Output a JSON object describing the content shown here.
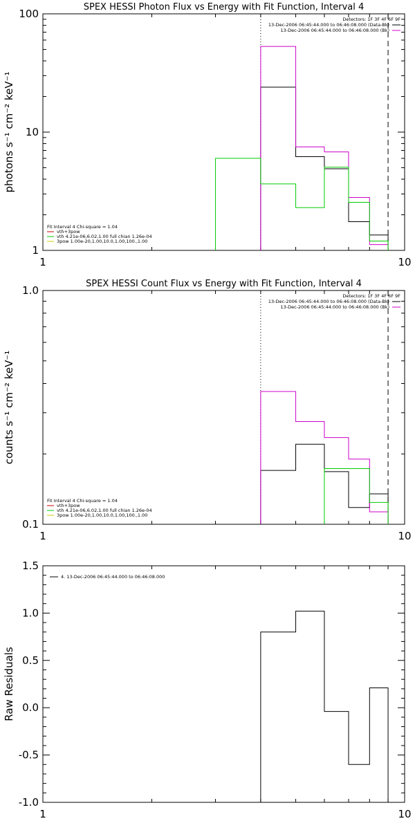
{
  "chart_data": [
    {
      "type": "line",
      "title": "SPEX HESSI Photon Flux vs Energy with Fit Function, Interval 4",
      "ylabel": "photons s⁻¹ cm⁻² keV⁻¹",
      "xscale": "log",
      "yscale": "log",
      "xlim": [
        1,
        10
      ],
      "ylim": [
        1,
        100
      ],
      "xticks": [
        "1",
        "10"
      ],
      "yticks": [
        {
          "v": 1,
          "t": "1"
        },
        {
          "v": 10,
          "t": "10"
        },
        {
          "v": 100,
          "t": "100"
        }
      ],
      "vlines": [
        {
          "x": 4.0,
          "style": "dotted"
        },
        {
          "x": 9.0,
          "style": "dashed"
        }
      ],
      "legend_top": {
        "header": "Detectors: 1F 3F 4F 6F 9F",
        "entries": [
          {
            "text": "13-Dec-2006 06:45:44.000 to 06:46:08.000 (Data-Bk)",
            "color": "#000000"
          },
          {
            "text": "13-Dec-2006 06:45:44.000 to 06:46:08.000 (Bk)",
            "color": "#cc00cc"
          }
        ]
      },
      "legend_bottom": [
        {
          "text": "Fit Interval  4    Chi-square = 1.04",
          "color": null
        },
        {
          "text": "vth+3pow",
          "color": "#cc0000"
        },
        {
          "text": "vth 4.21e-06,6.02,1.00   full chian 1.26e-04",
          "color": "#00cc00"
        },
        {
          "text": "3pow 1.00e-20,1.00,10.0,1.00,100.,1.00",
          "color": "#cccc00"
        }
      ],
      "series": [
        {
          "name": "Data-Bk",
          "color": "#000000",
          "edges": [
            4.0,
            5.0,
            6.0,
            7.0,
            8.0,
            9.0
          ],
          "values": [
            24.0,
            6.2,
            4.9,
            1.75,
            1.35
          ]
        },
        {
          "name": "Bk",
          "color": "#cc00cc",
          "edges": [
            4.0,
            5.0,
            6.0,
            7.0,
            8.0,
            9.0
          ],
          "values": [
            53.0,
            7.5,
            6.8,
            2.8,
            1.12
          ]
        },
        {
          "name": "vth",
          "color": "#00cc00",
          "edges": [
            3.0,
            4.0,
            5.0,
            6.0,
            7.0,
            8.0,
            9.0
          ],
          "values": [
            6.0,
            3.65,
            2.3,
            5.05,
            2.55,
            1.2
          ]
        }
      ]
    },
    {
      "type": "line",
      "title": "SPEX HESSI Count Flux vs Energy with Fit Function, Interval 4",
      "ylabel": "counts s⁻¹ cm⁻² keV⁻¹",
      "xscale": "log",
      "yscale": "log",
      "xlim": [
        1,
        10
      ],
      "ylim": [
        0.1,
        1.0
      ],
      "xticks": [
        "1",
        "10"
      ],
      "yticks": [
        {
          "v": 0.1,
          "t": "0.1"
        },
        {
          "v": 1.0,
          "t": "1.0"
        }
      ],
      "vlines": [
        {
          "x": 4.0,
          "style": "dotted"
        },
        {
          "x": 9.0,
          "style": "dashed"
        }
      ],
      "legend_top": {
        "header": "Detectors: 1F 3F 4F 6F 9F",
        "entries": [
          {
            "text": "13-Dec-2006 06:45:44.000 to 06:46:08.000 (Data-Bk)",
            "color": "#000000"
          },
          {
            "text": "13-Dec-2006 06:45:44.000 to 06:46:08.000 (Bk)",
            "color": "#cc00cc"
          }
        ]
      },
      "legend_bottom": [
        {
          "text": "Fit Interval  4    Chi-square = 1.04",
          "color": null
        },
        {
          "text": "vth+3pow",
          "color": "#cc0000"
        },
        {
          "text": "vth 4.21e-06,6.02,1.00   full chian 1.26e-04",
          "color": "#00cc00"
        },
        {
          "text": "3pow 1.00e-20,1.00,10.0,1.00,100.,1.00",
          "color": "#cccc00"
        }
      ],
      "series": [
        {
          "name": "Data-Bk",
          "color": "#000000",
          "edges": [
            4.0,
            5.0,
            6.0,
            7.0,
            8.0,
            9.0
          ],
          "values": [
            0.17,
            0.22,
            0.168,
            0.118,
            0.135
          ]
        },
        {
          "name": "Bk",
          "color": "#cc00cc",
          "edges": [
            4.0,
            5.0,
            6.0,
            7.0,
            8.0,
            9.0
          ],
          "values": [
            0.37,
            0.275,
            0.235,
            0.19,
            0.113
          ]
        },
        {
          "name": "vth",
          "color": "#00cc00",
          "edges": [
            6.0,
            7.0,
            8.0,
            9.0
          ],
          "values": [
            0.173,
            0.173,
            0.124
          ]
        }
      ]
    },
    {
      "type": "line",
      "title": "",
      "ylabel": "Raw Residuals",
      "xscale": "log",
      "yscale": "linear",
      "xlim": [
        1,
        10
      ],
      "ylim": [
        -1.0,
        1.5
      ],
      "xticks": [
        "1",
        "10"
      ],
      "yticks": [
        {
          "v": -1.0,
          "t": "-1.0"
        },
        {
          "v": -0.5,
          "t": "-0.5"
        },
        {
          "v": 0.0,
          "t": "0.0"
        },
        {
          "v": 0.5,
          "t": "0.5"
        },
        {
          "v": 1.0,
          "t": "1.0"
        },
        {
          "v": 1.5,
          "t": "1.5"
        }
      ],
      "vlines": [],
      "legend_top": null,
      "legend_bottom": [],
      "legend_residual": "4. 13-Dec-2006 06:45:44.000 to 06:46:08.000",
      "series": [
        {
          "name": "4. 13-Dec-2006 06:45:44.000 to 06:46:08.000",
          "color": "#000000",
          "edges": [
            4.0,
            5.0,
            6.0,
            7.0,
            8.0,
            9.0
          ],
          "values": [
            0.8,
            1.02,
            -0.04,
            -0.6,
            0.21
          ],
          "closed_floor": -1.0
        }
      ]
    }
  ]
}
